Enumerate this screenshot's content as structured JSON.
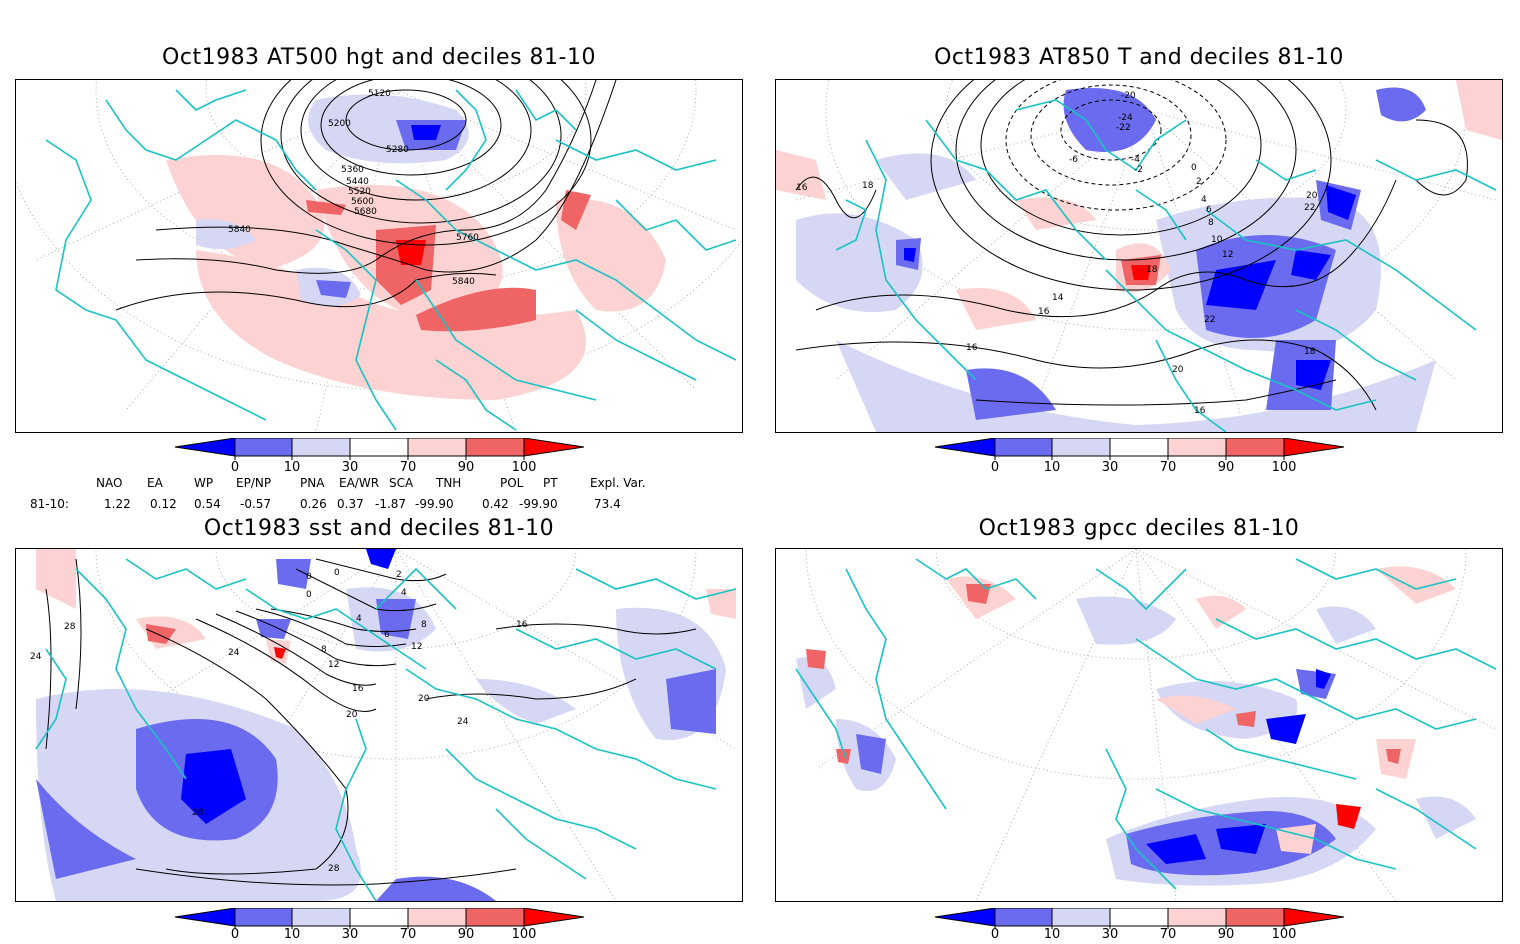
{
  "panels": [
    {
      "title": "Oct1983 AT500 hgt and deciles 81-10",
      "contour_labels": [
        "5120",
        "5200",
        "5280",
        "5360",
        "5440",
        "5520",
        "5600",
        "5680",
        "5760",
        "5840",
        "5840"
      ]
    },
    {
      "title": "Oct1983 AT850 T and deciles 81-10",
      "contour_labels": [
        "-24",
        "-22",
        "-20",
        "-6",
        "-4",
        "-2",
        "0",
        "2",
        "4",
        "6",
        "8",
        "10",
        "12",
        "14",
        "16",
        "16",
        "16",
        "16",
        "18",
        "18",
        "18",
        "20",
        "20",
        "22",
        "22"
      ]
    },
    {
      "title": "Oct1983 sst and deciles 81-10",
      "contour_labels": [
        "0",
        "0",
        "0",
        "2",
        "4",
        "4",
        "6",
        "8",
        "8",
        "12",
        "12",
        "16",
        "16",
        "20",
        "20",
        "24",
        "24",
        "24",
        "28",
        "28",
        "28"
      ]
    },
    {
      "title": "Oct1983 gpcc deciles 81-10",
      "contour_labels": []
    }
  ],
  "colorbar": {
    "ticks": [
      "0",
      "10",
      "30",
      "70",
      "90",
      "100"
    ],
    "colors": [
      "#0000ff",
      "#6b6bef",
      "#d6d6f5",
      "#ffffff",
      "#fcd2d2",
      "#ef6464",
      "#ff0000"
    ]
  },
  "indices": {
    "headers": [
      "NAO",
      "EA",
      "WP",
      "EP/NP",
      "PNA",
      "EA/WR",
      "SCA",
      "TNH",
      "POL",
      "PT",
      "Expl. Var."
    ],
    "row_label": "81-10:",
    "values": [
      "1.22",
      "0.12",
      "0.54",
      "-0.57",
      "0.26",
      "0.37",
      "-1.87",
      "-99.90",
      "0.42",
      "-99.90",
      "73.4"
    ]
  }
}
